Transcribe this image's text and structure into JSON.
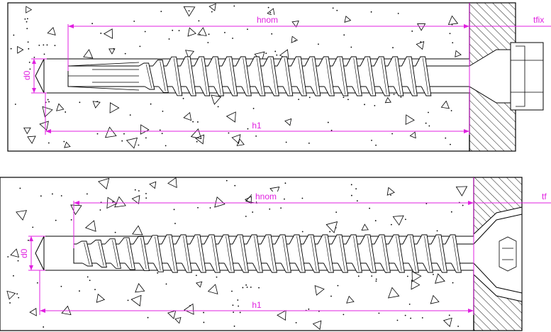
{
  "colors": {
    "dimension": "#e020e0",
    "line": "#000000",
    "concrete": "#ffffff"
  },
  "figures": [
    {
      "id": "top",
      "labels": {
        "hnom": "hnom",
        "tfix": "tfix",
        "d0": "d0",
        "h1": "h1"
      }
    },
    {
      "id": "bottom",
      "labels": {
        "hnom": "hnom",
        "tfix": "tf",
        "d0": "d0",
        "h1": "h1"
      }
    }
  ]
}
